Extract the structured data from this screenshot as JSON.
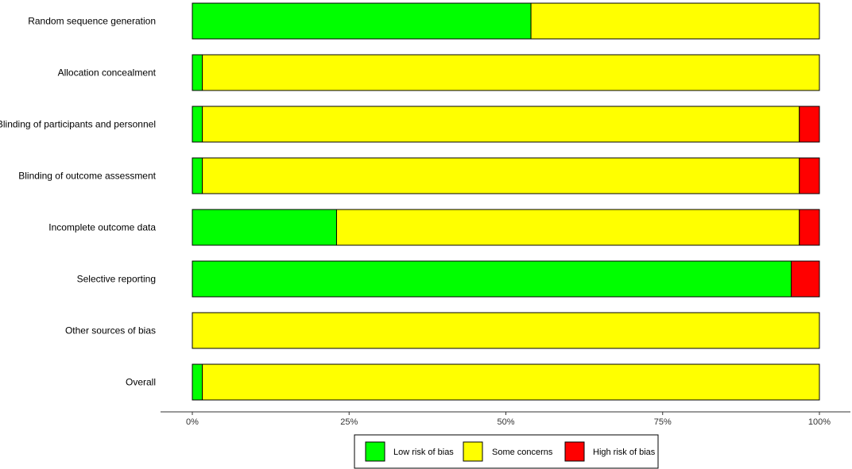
{
  "chart_data": {
    "type": "bar",
    "orientation": "horizontal",
    "stacked": true,
    "categories": [
      "Random sequence generation",
      "Allocation concealment",
      "Blinding of participants and personnel",
      "Blinding of outcome assessment",
      "Incomplete outcome data",
      "Selective reporting",
      "Other sources of bias",
      "Overall"
    ],
    "series": [
      {
        "name": "Low risk of bias",
        "color": "#00ff00",
        "values": [
          54,
          1.6,
          1.6,
          1.6,
          23,
          95.5,
          0,
          1.6
        ]
      },
      {
        "name": "Some concerns",
        "color": "#ffff00",
        "values": [
          46,
          98.4,
          95.2,
          95.2,
          73.8,
          0,
          100,
          98.4
        ]
      },
      {
        "name": "High risk of bias",
        "color": "#ff0000",
        "values": [
          0,
          0,
          3.2,
          3.2,
          3.2,
          4.5,
          0,
          0
        ]
      }
    ],
    "xticks": [
      "0%",
      "25%",
      "50%",
      "75%",
      "100%"
    ],
    "xlim": [
      0,
      100
    ],
    "legend_position": "bottom",
    "grid": false
  }
}
